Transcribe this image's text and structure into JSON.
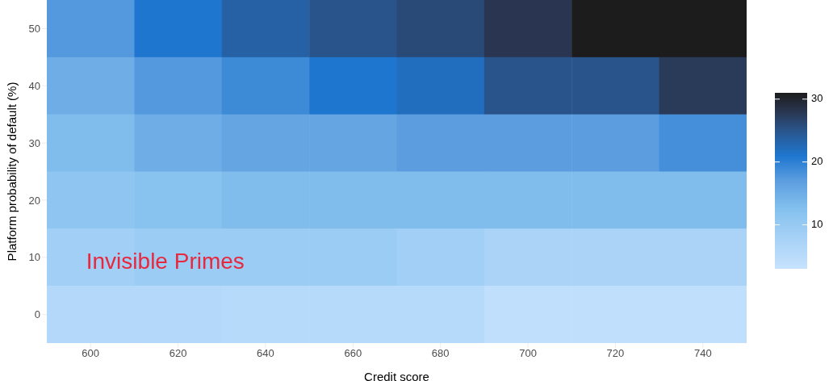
{
  "chart_data": {
    "type": "heatmap",
    "xlabel": "Credit score",
    "ylabel": "Platform probability of default (%)",
    "categories": [
      "600",
      "620",
      "640",
      "660",
      "680",
      "700",
      "720",
      "740"
    ],
    "y_categories": [
      "50",
      "40",
      "30",
      "20",
      "10",
      "0"
    ],
    "cells": [
      [
        17.5,
        21,
        23.5,
        25,
        26,
        28,
        31,
        31
      ],
      [
        15,
        17.5,
        19,
        21,
        22,
        25,
        25,
        27.5
      ],
      [
        13,
        15,
        16,
        16,
        17,
        17,
        17,
        18.5
      ],
      [
        11,
        12,
        13,
        13,
        13,
        13,
        13,
        13
      ],
      [
        8.5,
        9.5,
        9.5,
        9.5,
        8.5,
        7.5,
        7.5,
        7.5
      ],
      [
        6,
        6,
        5.5,
        5.5,
        5.5,
        4,
        4,
        4
      ]
    ],
    "clim": [
      3,
      31
    ],
    "cticks": [
      10,
      20,
      30
    ],
    "annotations": [
      "Invisible Primes"
    ]
  }
}
